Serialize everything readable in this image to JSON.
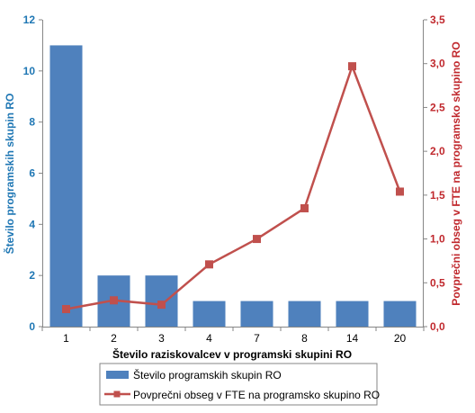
{
  "chart_data": {
    "type": "bar",
    "categories": [
      "1",
      "2",
      "3",
      "4",
      "7",
      "8",
      "14",
      "20"
    ],
    "xlabel": "Število raziskovalcev v programski skupini RO",
    "series": [
      {
        "name": "Število programskih skupin RO",
        "type": "bar",
        "axis": "left",
        "color": "#4f81bd",
        "values": [
          11,
          2,
          2,
          1,
          1,
          1,
          1,
          1
        ]
      },
      {
        "name": "Povprečni obseg v FTE na programsko skupino RO",
        "type": "line",
        "axis": "right",
        "color": "#c0504d",
        "values": [
          0.2,
          0.3,
          0.25,
          0.71,
          1.0,
          1.35,
          2.97,
          1.54
        ]
      }
    ],
    "y_left": {
      "label": "Število programskih skupin RO",
      "ylim": [
        0,
        12
      ],
      "ticks": [
        "0",
        "2",
        "4",
        "6",
        "8",
        "10",
        "12"
      ],
      "color": "#1f77b4"
    },
    "y_right": {
      "label": "Povprečni obseg v FTE na programsko skupino RO",
      "ylim": [
        0,
        3.5
      ],
      "ticks": [
        "0,0",
        "0,5",
        "1,0",
        "1,5",
        "2,0",
        "2,5",
        "3,0",
        "3,5"
      ],
      "color": "#c0282d"
    },
    "grid": false,
    "legend_position": "bottom"
  }
}
